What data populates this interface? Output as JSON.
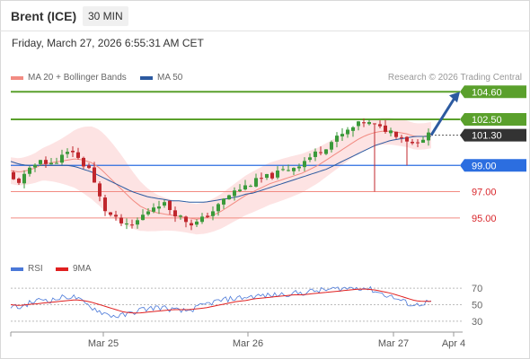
{
  "header": {
    "instrument": "Brent (ICE)",
    "timeframe": "30 MIN"
  },
  "timestamp": "Friday, March 27, 2026 6:55:31 AM CET",
  "legend": {
    "ma20": {
      "label": "MA 20 + Bollinger Bands",
      "color": "#f28b82"
    },
    "ma50": {
      "label": "MA 50",
      "color": "#2c5aa0"
    },
    "rsi": {
      "label": "RSI",
      "color": "#4a78d8"
    },
    "rsi_ma": {
      "label": "9MA",
      "color": "#e02020"
    }
  },
  "credit": "Research © 2026 Trading Central",
  "chart_data": [
    {
      "type": "candlestick",
      "y_range": [
        92.6,
        105.3
      ],
      "x_ticks": [
        "Mar 25",
        "Mar 26",
        "Mar 27",
        "Apr 4"
      ],
      "levels": [
        {
          "value": 104.6,
          "label": "104.60",
          "kind": "target",
          "color": "#5aa02c"
        },
        {
          "value": 102.5,
          "label": "102.50",
          "kind": "resistance",
          "color": "#5aa02c"
        },
        {
          "value": 101.3,
          "label": "101.30",
          "kind": "last",
          "color": "#333333"
        },
        {
          "value": 99.0,
          "label": "99.00",
          "kind": "pivot",
          "color": "#2c6ee0"
        },
        {
          "value": 97.0,
          "label": "97.00",
          "kind": "support",
          "color": "#d9262b"
        },
        {
          "value": 95.0,
          "label": "95.00",
          "kind": "support",
          "color": "#d9262b"
        }
      ],
      "close_path": [
        98.4,
        97.6,
        98.2,
        98.8,
        99.6,
        98.9,
        99.4,
        99.8,
        100.1,
        99.2,
        98.8,
        97.0,
        95.6,
        95.0,
        94.6,
        94.2,
        94.8,
        95.4,
        95.9,
        96.2,
        95.7,
        95.2,
        94.8,
        94.5,
        94.9,
        95.4,
        95.9,
        96.6,
        97.0,
        97.3,
        97.6,
        97.9,
        98.1,
        98.3,
        98.6,
        98.8,
        99.1,
        99.5,
        99.9,
        100.3,
        100.8,
        101.2,
        101.6,
        102.0,
        102.3,
        102.1,
        101.8,
        101.7,
        101.4,
        101.1,
        100.7,
        101.0,
        101.3
      ],
      "price_series": [
        {
          "name": "MA 20",
          "values": [
            98.6,
            98.5,
            98.6,
            98.8,
            99.1,
            99.2,
            99.3,
            99.4,
            99.5,
            99.4,
            99.2,
            98.8,
            98.2,
            97.6,
            97.0,
            96.4,
            95.9,
            95.6,
            95.4,
            95.3,
            95.2,
            95.1,
            95.0,
            94.9,
            95.0,
            95.2,
            95.5,
            95.9,
            96.3,
            96.7,
            97.0,
            97.3,
            97.6,
            97.8,
            98.0,
            98.2,
            98.4,
            98.7,
            99.0,
            99.4,
            99.8,
            100.2,
            100.6,
            101.0,
            101.3,
            101.5,
            101.6,
            101.6,
            101.5,
            101.4,
            101.2,
            101.2,
            101.3
          ]
        },
        {
          "name": "MA 50",
          "values": [
            99.3,
            99.1,
            99.0,
            99.0,
            99.0,
            99.0,
            99.0,
            99.0,
            98.9,
            98.7,
            98.5,
            98.2,
            97.9,
            97.6,
            97.3,
            97.0,
            96.8,
            96.6,
            96.5,
            96.4,
            96.3,
            96.3,
            96.2,
            96.2,
            96.2,
            96.3,
            96.4,
            96.5,
            96.6,
            96.8,
            96.9,
            97.1,
            97.3,
            97.5,
            97.7,
            97.9,
            98.1,
            98.3,
            98.5,
            98.7,
            99.0,
            99.3,
            99.6,
            99.9,
            100.2,
            100.5,
            100.7,
            100.9,
            101.0,
            101.1,
            101.2,
            101.2,
            101.2
          ]
        }
      ]
    },
    {
      "type": "line",
      "title": "RSI",
      "y_range": [
        20,
        80
      ],
      "y_ticks": [
        70,
        50,
        30
      ],
      "x_ticks": [
        "Mar 25",
        "Mar 26",
        "Mar 27",
        "Apr 4"
      ],
      "series": [
        {
          "name": "RSI",
          "values": [
            49,
            46,
            51,
            54,
            57,
            55,
            58,
            60,
            59,
            52,
            47,
            42,
            38,
            36,
            37,
            40,
            44,
            45,
            47,
            46,
            44,
            42,
            43,
            46,
            50,
            53,
            55,
            57,
            58,
            59,
            60,
            61,
            61,
            62,
            63,
            64,
            64,
            66,
            67,
            68,
            69,
            70,
            70,
            71,
            70,
            67,
            63,
            60,
            56,
            52,
            49,
            52,
            54
          ]
        },
        {
          "name": "9MA",
          "values": [
            50,
            49,
            50,
            51,
            52,
            53,
            54,
            55,
            56,
            55,
            53,
            50,
            47,
            44,
            41,
            40,
            40,
            41,
            42,
            43,
            44,
            44,
            44,
            45,
            46,
            48,
            50,
            52,
            54,
            55,
            57,
            58,
            59,
            60,
            61,
            62,
            62,
            63,
            64,
            65,
            66,
            67,
            68,
            69,
            69,
            68,
            66,
            64,
            61,
            58,
            55,
            54,
            54
          ]
        }
      ]
    }
  ]
}
